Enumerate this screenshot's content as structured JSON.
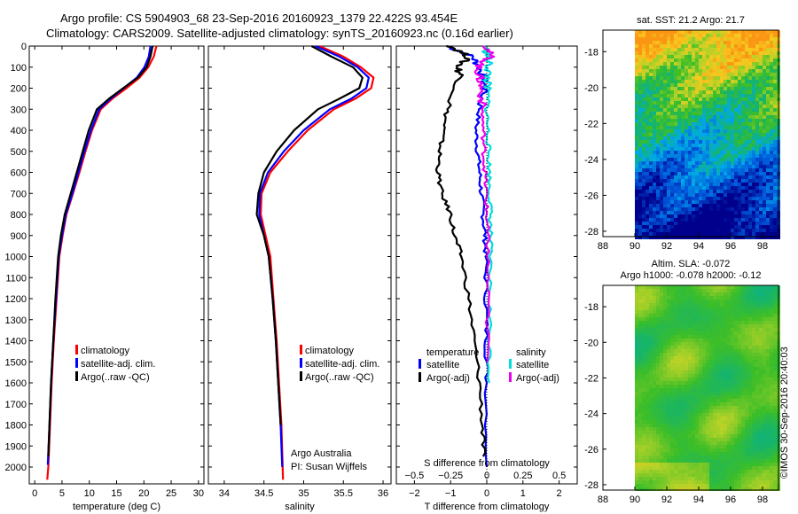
{
  "header": {
    "title_line1": "Argo profile: CS 5904903_68 23-Sep-2016 20160923_1379 22.422S 93.454E",
    "title_line2": "Climatology: CARS2009. Satellite-adjusted climatology: synTS_20160923.nc (0.16d earlier)"
  },
  "credit": "©IMOS 30-Sep-2016 20:40:03",
  "colors": {
    "climatology": "#ff0000",
    "satellite": "#0000ff",
    "argo": "#000000",
    "satellite_salinity": "#00dddd",
    "argo_salinity": "#ee00ee"
  },
  "chart_data": [
    {
      "type": "line",
      "panel": "temperature",
      "xlabel": "temperature (deg C)",
      "ylabel": "",
      "xlim": [
        -1,
        31
      ],
      "ylim": [
        2080,
        0
      ],
      "xticks": [
        0,
        5,
        10,
        15,
        20,
        25,
        30
      ],
      "yticks": [
        0,
        100,
        200,
        300,
        400,
        500,
        600,
        700,
        800,
        900,
        1000,
        1100,
        1200,
        1300,
        1400,
        1500,
        1600,
        1700,
        1800,
        1900,
        2000
      ],
      "legend": [
        "climatology",
        "satellite-adj. clim.",
        "Argo(..raw -QC)"
      ],
      "legend_position": "lower-middle",
      "series": [
        {
          "name": "climatology",
          "color": "#ff0000",
          "x": [
            22.3,
            21.8,
            20.8,
            19.2,
            16.8,
            14.2,
            12.1,
            10.5,
            9.3,
            8.2,
            7.0,
            5.8,
            5.1,
            4.5,
            4.0,
            3.5,
            3.1,
            2.8,
            2.5,
            2.3
          ],
          "y": [
            0,
            50,
            100,
            150,
            200,
            250,
            300,
            400,
            500,
            600,
            700,
            800,
            900,
            1000,
            1200,
            1400,
            1600,
            1800,
            2000,
            2060
          ]
        },
        {
          "name": "satellite-adj. clim.",
          "color": "#0000ff",
          "x": [
            21.2,
            20.9,
            20.1,
            18.7,
            16.3,
            13.9,
            11.8,
            10.3,
            9.1,
            8.0,
            6.9,
            5.7,
            5.0,
            4.4,
            3.9,
            3.4,
            3.0,
            2.7,
            2.4
          ],
          "y": [
            0,
            50,
            100,
            150,
            200,
            250,
            300,
            400,
            500,
            600,
            700,
            800,
            900,
            1000,
            1200,
            1400,
            1600,
            1800,
            1990
          ]
        },
        {
          "name": "Argo(..raw -QC)",
          "color": "#000000",
          "x": [
            21.6,
            21.2,
            20.5,
            18.9,
            16.2,
            13.6,
            11.4,
            9.9,
            8.8,
            7.7,
            6.6,
            5.5,
            4.8,
            4.3,
            3.8,
            3.4,
            3.0,
            2.7,
            2.5
          ],
          "y": [
            0,
            50,
            100,
            150,
            200,
            250,
            300,
            400,
            500,
            600,
            700,
            800,
            900,
            1000,
            1200,
            1400,
            1600,
            1800,
            1950
          ]
        }
      ]
    },
    {
      "type": "line",
      "panel": "salinity",
      "xlabel": "salinity",
      "xlim": [
        33.8,
        36.1
      ],
      "ylim": [
        2080,
        0
      ],
      "xticks": [
        34,
        34.5,
        35,
        35.5,
        36
      ],
      "legend": [
        "climatology",
        "satellite-adj. clim.",
        "Argo(..raw -QC)"
      ],
      "annotation": [
        "Argo Australia",
        "PI: Susan Wijffels"
      ],
      "series": [
        {
          "name": "climatology",
          "color": "#ff0000",
          "x": [
            35.2,
            35.5,
            35.72,
            35.88,
            35.85,
            35.65,
            35.38,
            35.05,
            34.8,
            34.58,
            34.47,
            34.46,
            34.52,
            34.58,
            34.62,
            34.66,
            34.69,
            34.72,
            34.74
          ],
          "y": [
            0,
            50,
            100,
            150,
            200,
            250,
            300,
            400,
            500,
            600,
            700,
            800,
            900,
            1000,
            1200,
            1400,
            1600,
            1800,
            2060
          ]
        },
        {
          "name": "satellite-adj. clim.",
          "color": "#0000ff",
          "x": [
            35.15,
            35.45,
            35.68,
            35.82,
            35.79,
            35.6,
            35.33,
            35.0,
            34.75,
            34.55,
            34.45,
            34.44,
            34.5,
            34.56,
            34.61,
            34.65,
            34.68,
            34.71,
            34.73
          ],
          "y": [
            0,
            50,
            100,
            150,
            200,
            250,
            300,
            400,
            500,
            600,
            700,
            800,
            900,
            1000,
            1200,
            1400,
            1600,
            1800,
            2000
          ]
        },
        {
          "name": "Argo(..raw -QC)",
          "color": "#000000",
          "x": [
            35.1,
            35.35,
            35.62,
            35.74,
            35.7,
            35.45,
            35.18,
            34.88,
            34.66,
            34.5,
            34.43,
            34.41,
            34.5,
            34.56,
            34.61,
            34.65,
            34.68,
            34.71
          ],
          "y": [
            0,
            50,
            100,
            150,
            200,
            250,
            300,
            400,
            500,
            600,
            700,
            800,
            900,
            1000,
            1200,
            1400,
            1600,
            1800
          ]
        }
      ]
    },
    {
      "type": "line",
      "panel": "differences",
      "xlabel": "T difference from climatology",
      "secondary_xlabel": "S difference from climatology",
      "xlim": [
        -2.5,
        2.5
      ],
      "ylim": [
        2080,
        0
      ],
      "xticks": [
        -2,
        -1,
        0,
        1,
        2
      ],
      "xticklabels": [
        "−2",
        "−1",
        "0",
        "1",
        "2"
      ],
      "secondary_xticks": [
        -0.5,
        -0.25,
        0,
        0.25,
        0.5
      ],
      "secondary_xticklabels": [
        "−0.5",
        "−0.25",
        "0",
        "0.25",
        "0.5"
      ],
      "legend_temperature": {
        "title": "temperature",
        "items": [
          "satellite",
          "Argo(-adj)"
        ]
      },
      "legend_salinity": {
        "title": "salinity",
        "items": [
          "satellite",
          "Argo(-adj)"
        ]
      },
      "series": [
        {
          "name": "temperature satellite",
          "color": "#0000ff",
          "x": [
            -1.1,
            -0.4,
            -0.2,
            -0.1,
            -0.05,
            -0.2,
            -0.3,
            -0.25,
            -0.2,
            -0.15,
            -0.1,
            -0.05,
            -0.03,
            -0.02,
            -0.01,
            0,
            0
          ],
          "y": [
            0,
            50,
            100,
            150,
            200,
            300,
            400,
            500,
            600,
            700,
            800,
            900,
            1000,
            1200,
            1400,
            1600,
            2000
          ]
        },
        {
          "name": "temperature Argo(-adj)",
          "color": "#000000",
          "x": [
            -1.0,
            -0.5,
            -0.8,
            -0.7,
            -1.1,
            -1.2,
            -1.3,
            -1.35,
            -1.25,
            -1.0,
            -0.9,
            -0.7,
            -0.5,
            -0.35,
            -0.2,
            -0.12,
            -0.1
          ],
          "y": [
            0,
            50,
            100,
            150,
            300,
            400,
            500,
            600,
            700,
            800,
            900,
            1000,
            1200,
            1400,
            1600,
            1800,
            1950
          ]
        },
        {
          "name": "salinity satellite",
          "color": "#00dddd",
          "x": [
            -0.05,
            0.03,
            0.05,
            0.02,
            0.0,
            0.0,
            0.03,
            0.05,
            0.07,
            0.08,
            0.1,
            0.1,
            0.09,
            0.08,
            0.08,
            0.07
          ],
          "y": [
            0,
            50,
            100,
            150,
            200,
            300,
            400,
            500,
            600,
            700,
            800,
            900,
            1000,
            1200,
            1400,
            1600
          ]
        },
        {
          "name": "salinity Argo(-adj)",
          "color": "#ee00ee",
          "x": [
            0.0,
            0.1,
            -0.25,
            -0.2,
            -0.15,
            -0.12,
            -0.1,
            -0.08,
            -0.05,
            -0.02,
            0.0,
            0.02,
            0.03,
            0.02,
            0.02
          ],
          "y": [
            0,
            50,
            100,
            150,
            200,
            300,
            400,
            500,
            600,
            700,
            800,
            900,
            1000,
            1200,
            1500
          ]
        }
      ]
    },
    {
      "type": "heatmap",
      "panel": "sst-map",
      "title": "sat. SST: 21.2  Argo: 21.7",
      "xlim": [
        88,
        99
      ],
      "ylim": [
        -28.3,
        -16.8
      ],
      "xticks": [
        88,
        90,
        92,
        94,
        96,
        98
      ],
      "yticks": [
        -18,
        -20,
        -22,
        -24,
        -26,
        -28
      ]
    },
    {
      "type": "heatmap",
      "panel": "sla-map",
      "title_line1": "Altim. SLA: -0.072",
      "title_line2": "Argo h1000: -0.078 h2000: -0.12",
      "xlim": [
        88,
        99
      ],
      "ylim": [
        -28.3,
        -16.8
      ],
      "xticks": [
        88,
        90,
        92,
        94,
        96,
        98
      ],
      "yticks": [
        -18,
        -20,
        -22,
        -24,
        -26,
        -28
      ]
    }
  ]
}
